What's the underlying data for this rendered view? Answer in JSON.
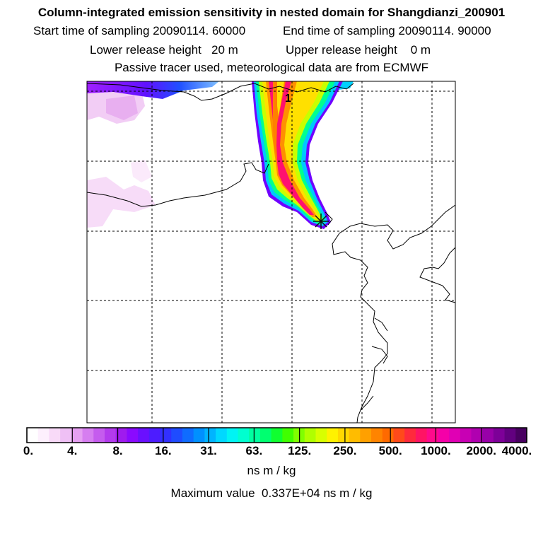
{
  "header": {
    "title": "Column-integrated emission sensitivity in nested domain for Shangdianzi_200901",
    "start_time": "Start time of sampling 20090114. 60000",
    "end_time": "End time of sampling 20090114. 90000",
    "lower_height": "Lower release height   20 m",
    "upper_height": "Upper release height    0 m",
    "tracer_info": "Passive tracer used, meteorological data are from ECMWF"
  },
  "map": {
    "marker_label": "1",
    "colors": {
      "frame": "#000000",
      "grid": "#000000",
      "coast": "#000000"
    }
  },
  "colorbar": {
    "labels": [
      "0.",
      "4.",
      "8.",
      "16.",
      "31.",
      "63.",
      "125.",
      "250.",
      "500.",
      "1000.",
      "2000.",
      "4000."
    ],
    "colors": [
      "#ffffff",
      "#fdf0fd",
      "#f8daf8",
      "#efc0f5",
      "#e6a0f2",
      "#d67ef0",
      "#c55cee",
      "#b33bed",
      "#9f1bee",
      "#8a0aff",
      "#6a10ff",
      "#4d1cff",
      "#3230ff",
      "#1f4cff",
      "#0f6cff",
      "#0090ff",
      "#00b4ff",
      "#00d8ff",
      "#00f4f4",
      "#00ffd0",
      "#00ffa0",
      "#00ff70",
      "#10ff30",
      "#40ff00",
      "#80ff00",
      "#b0ff00",
      "#d8ff00",
      "#fff200",
      "#ffd800",
      "#ffbc00",
      "#ffa000",
      "#ff8400",
      "#ff6a00",
      "#ff4a1a",
      "#ff2a3c",
      "#ff1464",
      "#ff0a8c",
      "#f500a8",
      "#e000b4",
      "#c800b4",
      "#b000b0",
      "#9800a8",
      "#7d0098",
      "#620080",
      "#480060"
    ],
    "units": "ns m / kg",
    "max_value": "Maximum value  0.337E+04 ns m / kg"
  }
}
